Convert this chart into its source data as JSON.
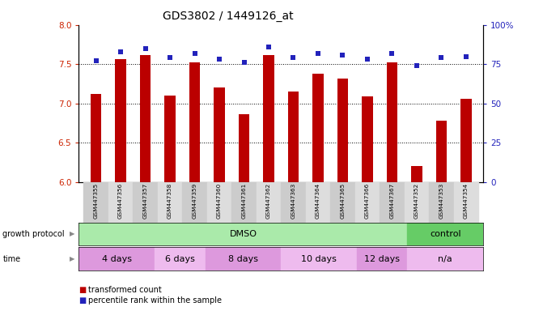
{
  "title": "GDS3802 / 1449126_at",
  "samples": [
    "GSM447355",
    "GSM447356",
    "GSM447357",
    "GSM447358",
    "GSM447359",
    "GSM447360",
    "GSM447361",
    "GSM447362",
    "GSM447363",
    "GSM447364",
    "GSM447365",
    "GSM447366",
    "GSM447367",
    "GSM447352",
    "GSM447353",
    "GSM447354"
  ],
  "transformed_counts": [
    7.12,
    7.56,
    7.62,
    7.1,
    7.52,
    7.2,
    6.86,
    7.62,
    7.15,
    7.38,
    7.32,
    7.09,
    7.52,
    6.2,
    6.78,
    7.06
  ],
  "percentile_ranks": [
    77,
    83,
    85,
    79,
    82,
    78,
    76,
    86,
    79,
    82,
    81,
    78,
    82,
    74,
    79,
    80
  ],
  "ylim_left": [
    6.0,
    8.0
  ],
  "ylim_right": [
    0,
    100
  ],
  "yticks_left": [
    6.0,
    6.5,
    7.0,
    7.5,
    8.0
  ],
  "yticks_right": [
    0,
    25,
    50,
    75,
    100
  ],
  "ytick_labels_right": [
    "0",
    "25",
    "50",
    "75",
    "100%"
  ],
  "bar_color": "#bb0000",
  "dot_color": "#2222bb",
  "groups_gp": [
    {
      "label": "DMSO",
      "start": 0,
      "end": 13,
      "color": "#aaeaaa"
    },
    {
      "label": "control",
      "start": 13,
      "end": 16,
      "color": "#66cc66"
    }
  ],
  "groups_time": [
    {
      "label": "4 days",
      "start": 0,
      "end": 3,
      "color": "#dd99dd"
    },
    {
      "label": "6 days",
      "start": 3,
      "end": 5,
      "color": "#eebbee"
    },
    {
      "label": "8 days",
      "start": 5,
      "end": 8,
      "color": "#dd99dd"
    },
    {
      "label": "10 days",
      "start": 8,
      "end": 11,
      "color": "#eebbee"
    },
    {
      "label": "12 days",
      "start": 11,
      "end": 13,
      "color": "#dd99dd"
    },
    {
      "label": "n/a",
      "start": 13,
      "end": 16,
      "color": "#eebbee"
    }
  ],
  "legend": [
    {
      "label": "transformed count",
      "color": "#bb0000"
    },
    {
      "label": "percentile rank within the sample",
      "color": "#2222bb"
    }
  ]
}
